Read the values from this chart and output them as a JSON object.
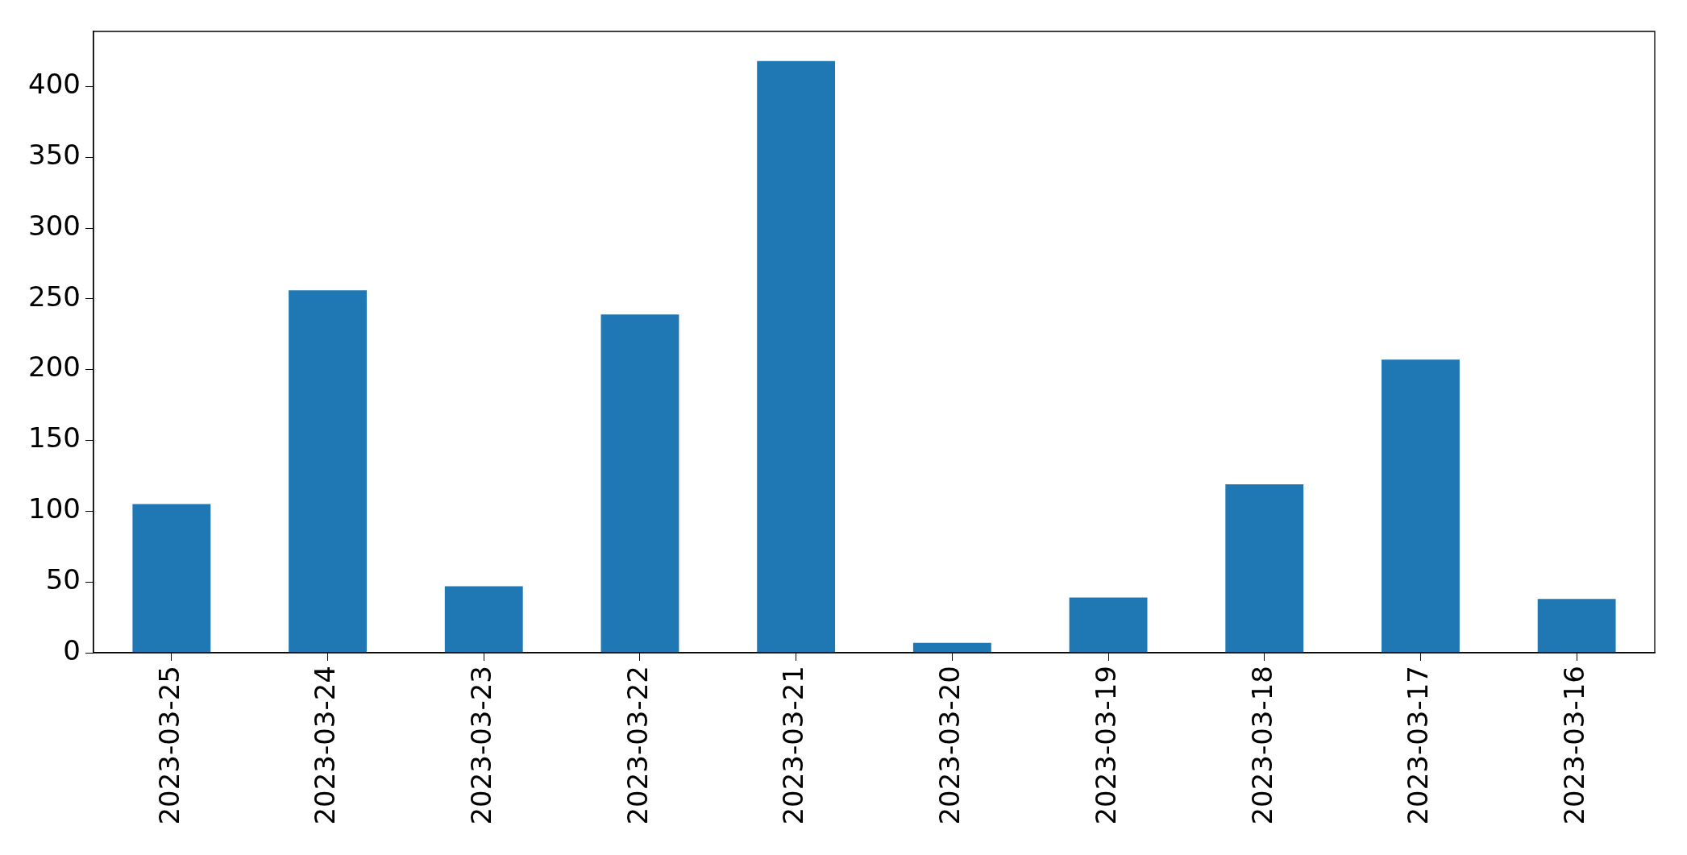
{
  "chart_data": {
    "type": "bar",
    "categories": [
      "2023-03-25",
      "2023-03-24",
      "2023-03-23",
      "2023-03-22",
      "2023-03-21",
      "2023-03-20",
      "2023-03-19",
      "2023-03-18",
      "2023-03-17",
      "2023-03-16"
    ],
    "values": [
      105,
      256,
      47,
      239,
      418,
      7,
      39,
      119,
      207,
      38
    ],
    "color": "#1f77b4",
    "ylim": [
      0,
      438.9
    ],
    "yticks": [
      0,
      50,
      100,
      150,
      200,
      250,
      300,
      350,
      400
    ],
    "grid": false,
    "legend": false
  }
}
